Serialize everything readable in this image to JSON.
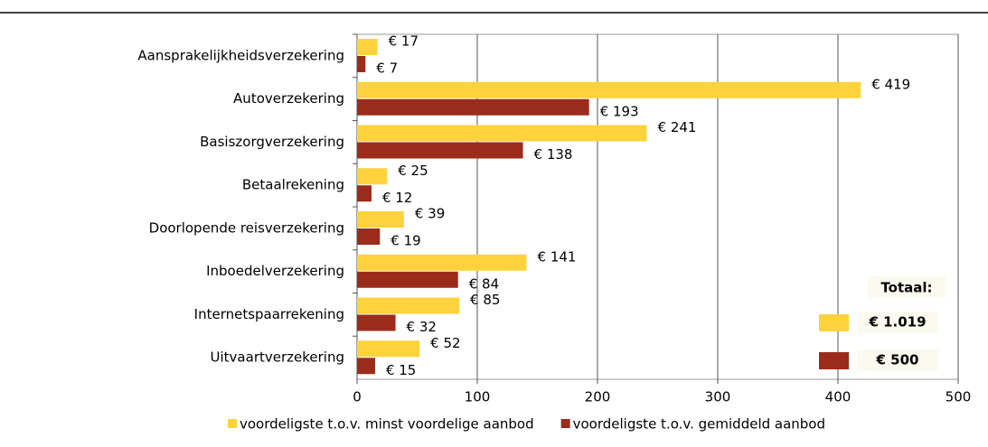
{
  "chart_data": {
    "type": "hbar",
    "categories": [
      "Aansprakelijkheidsverzekering",
      "Autoverzekering",
      "Basiszorgverzekering",
      "Betaalrekening",
      "Doorlopende reisverzekering",
      "Inboedelverzekering",
      "Internetspaarrekening",
      "Uitvaartverzekering"
    ],
    "series": [
      {
        "name": "voordeligste t.o.v. minst voordelige aanbod",
        "color": "#fdd23c",
        "values": [
          17,
          419,
          241,
          25,
          39,
          141,
          85,
          52
        ],
        "value_labels": [
          "€ 17",
          "€ 419",
          "€ 241",
          "€ 25",
          "€ 39",
          "€ 141",
          "€ 85",
          "€ 52"
        ]
      },
      {
        "name": "voordeligste t.o.v. gemiddeld aanbod",
        "color": "#9b2c1c",
        "values": [
          7,
          193,
          138,
          12,
          19,
          84,
          32,
          15
        ],
        "value_labels": [
          "€ 7",
          "€ 193",
          "€ 138",
          "€ 12",
          "€ 19",
          "€ 84",
          "€ 32",
          "€ 15"
        ]
      }
    ],
    "xlim": [
      0,
      500
    ],
    "xticks": [
      0,
      100,
      200,
      300,
      400,
      500
    ],
    "grid": true,
    "legend": "bottom",
    "totals": {
      "title": "Totaal:",
      "values": [
        1019,
        500
      ],
      "value_labels": [
        "€ 1.019",
        "€ 500"
      ]
    }
  }
}
